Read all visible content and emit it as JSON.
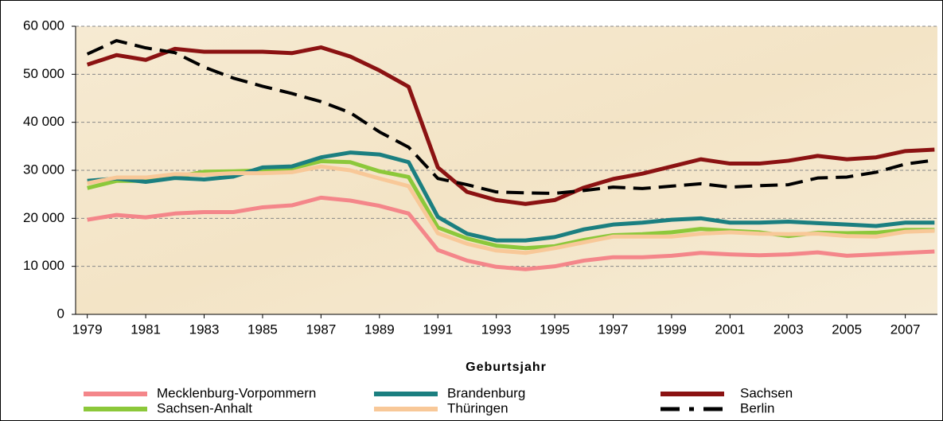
{
  "chart_data": {
    "type": "line",
    "x": [
      1979,
      1980,
      1981,
      1982,
      1983,
      1984,
      1985,
      1986,
      1987,
      1988,
      1989,
      1990,
      1991,
      1992,
      1993,
      1994,
      1995,
      1996,
      1997,
      1998,
      1999,
      2000,
      2001,
      2002,
      2003,
      2004,
      2005,
      2006,
      2007,
      2008
    ],
    "xlim": [
      1978.6,
      2008.1
    ],
    "xticks": [
      1979,
      1981,
      1983,
      1985,
      1987,
      1989,
      1991,
      1993,
      1995,
      1997,
      1999,
      2001,
      2003,
      2005,
      2007
    ],
    "x_label": "Geburtsjahr",
    "ylim": [
      0,
      60000
    ],
    "yticks": [
      0,
      {
        "value": 10000,
        "label": "10 000"
      },
      {
        "value": 20000,
        "label": "20 000"
      },
      {
        "value": 30000,
        "label": "30 000"
      },
      {
        "value": 40000,
        "label": "40 000"
      },
      {
        "value": 50000,
        "label": "50 000"
      },
      {
        "value": 60000,
        "label": "60 000"
      }
    ],
    "grid": true,
    "series": [
      {
        "name": "Mecklenburg-Vorpommern",
        "color": "#f4868a",
        "dashed": false,
        "values": [
          19700,
          20700,
          20200,
          21000,
          21300,
          21300,
          22300,
          22700,
          24300,
          23700,
          22600,
          21000,
          13400,
          11200,
          9900,
          9400,
          10000,
          11200,
          11900,
          11900,
          12200,
          12800,
          12500,
          12300,
          12500,
          12900,
          12200,
          12500,
          12800,
          13100
        ]
      },
      {
        "name": "Sachsen-Anhalt",
        "color": "#8cc83a",
        "dashed": false,
        "values": [
          26300,
          27800,
          27800,
          28600,
          29700,
          29800,
          30000,
          30400,
          31900,
          31700,
          29800,
          28600,
          18100,
          15800,
          14300,
          13800,
          14200,
          15500,
          16500,
          16700,
          17100,
          17800,
          17400,
          17100,
          16300,
          17000,
          16900,
          17000,
          17600,
          17600
        ]
      },
      {
        "name": "Brandenburg",
        "color": "#1b7f80",
        "dashed": false,
        "values": [
          27800,
          28300,
          27600,
          28400,
          28100,
          28700,
          30600,
          30800,
          32700,
          33700,
          33300,
          31700,
          20300,
          16800,
          15400,
          15400,
          16100,
          17700,
          18700,
          19100,
          19700,
          20000,
          19100,
          19100,
          19300,
          19000,
          18700,
          18400,
          19100,
          19100
        ]
      },
      {
        "name": "Thüringen",
        "color": "#f8c898",
        "dashed": false,
        "values": [
          27300,
          28500,
          28500,
          29200,
          29100,
          29400,
          29400,
          29600,
          30800,
          30000,
          28300,
          26700,
          16900,
          14700,
          13300,
          12800,
          13800,
          15000,
          16200,
          16200,
          16200,
          16800,
          17100,
          16800,
          16700,
          16800,
          16300,
          16200,
          17200,
          17400
        ]
      },
      {
        "name": "Sachsen",
        "color": "#8b1212",
        "dashed": false,
        "values": [
          52000,
          54000,
          53000,
          55300,
          54700,
          54700,
          54700,
          54400,
          55600,
          53700,
          50800,
          47400,
          30600,
          25500,
          23800,
          23000,
          23800,
          26400,
          28200,
          29300,
          30800,
          32300,
          31400,
          31400,
          32000,
          33000,
          32300,
          32700,
          34000,
          34300
        ]
      },
      {
        "name": "Berlin",
        "color": "#000000",
        "dashed": true,
        "values": [
          54200,
          57000,
          55500,
          54500,
          51500,
          49200,
          47500,
          46000,
          44300,
          42000,
          38000,
          34800,
          28300,
          27000,
          25500,
          25300,
          25200,
          25800,
          26500,
          26200,
          26700,
          27200,
          26500,
          26800,
          27000,
          28400,
          28600,
          29600,
          31300,
          32100
        ]
      }
    ]
  }
}
